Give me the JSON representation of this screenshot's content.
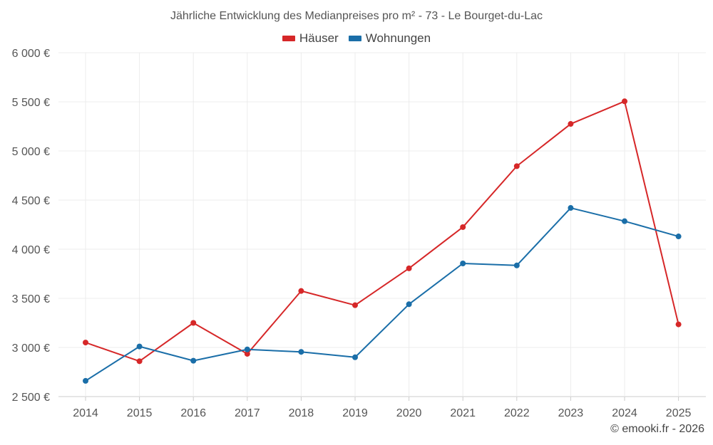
{
  "chart_data": {
    "type": "line",
    "title": "Jährliche Entwicklung des Medianpreises pro m² - 73 - Le Bourget-du-Lac",
    "categories": [
      "2014",
      "2015",
      "2016",
      "2017",
      "2018",
      "2019",
      "2020",
      "2021",
      "2022",
      "2023",
      "2024",
      "2025"
    ],
    "series": [
      {
        "name": "Häuser",
        "color": "#d62728",
        "values": [
          3050,
          2860,
          3250,
          2935,
          3575,
          3430,
          3805,
          4225,
          4845,
          5275,
          5505,
          3235
        ]
      },
      {
        "name": "Wohnungen",
        "color": "#1a6ea8",
        "values": [
          2660,
          3010,
          2865,
          2980,
          2955,
          2900,
          3440,
          3855,
          3835,
          4420,
          4285,
          4130
        ]
      }
    ],
    "ylim": [
      2500,
      6000
    ],
    "yticks": [
      2500,
      3000,
      3500,
      4000,
      4500,
      5000,
      5500,
      6000
    ],
    "ytick_labels": [
      "2 500 €",
      "3 000 €",
      "3 500 €",
      "4 000 €",
      "4 500 €",
      "5 000 €",
      "5 500 €",
      "6 000 €"
    ],
    "xlabel": "",
    "ylabel": "",
    "grid": true,
    "legend_position": "top-center"
  },
  "credit": "© emooki.fr - 2026"
}
